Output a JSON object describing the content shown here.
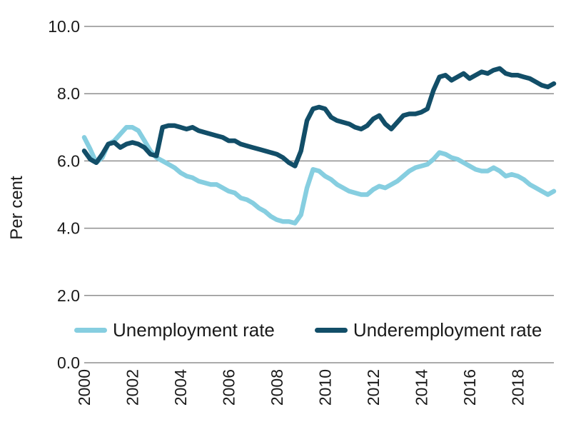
{
  "figure": {
    "background": "#FFFFFF",
    "text_color": "#1A1A1A",
    "grid_color": "#8F8F8F"
  },
  "chart_data": {
    "type": "line",
    "title": "",
    "xlabel": "",
    "ylabel": "Per cent",
    "ylim": [
      0,
      10
    ],
    "xlim": [
      2000,
      2019.5
    ],
    "grid": "horizontal-only",
    "legend_position": "bottom-inside",
    "yticks": {
      "values": [
        0,
        2,
        4,
        6,
        8,
        10
      ],
      "labels": [
        "0.0",
        "2.0",
        "4.0",
        "6.0",
        "8.0",
        "10.0"
      ]
    },
    "xticks": {
      "values": [
        2000,
        2002,
        2004,
        2006,
        2008,
        2010,
        2012,
        2014,
        2016,
        2018
      ],
      "labels": [
        "2000",
        "2002",
        "2004",
        "2006",
        "2008",
        "2010",
        "2012",
        "2014",
        "2016",
        "2018"
      ]
    },
    "x": [
      2000.0,
      2000.25,
      2000.5,
      2000.75,
      2001.0,
      2001.25,
      2001.5,
      2001.75,
      2002.0,
      2002.25,
      2002.5,
      2002.75,
      2003.0,
      2003.25,
      2003.5,
      2003.75,
      2004.0,
      2004.25,
      2004.5,
      2004.75,
      2005.0,
      2005.25,
      2005.5,
      2005.75,
      2006.0,
      2006.25,
      2006.5,
      2006.75,
      2007.0,
      2007.25,
      2007.5,
      2007.75,
      2008.0,
      2008.25,
      2008.5,
      2008.75,
      2009.0,
      2009.25,
      2009.5,
      2009.75,
      2010.0,
      2010.25,
      2010.5,
      2010.75,
      2011.0,
      2011.25,
      2011.5,
      2011.75,
      2012.0,
      2012.25,
      2012.5,
      2012.75,
      2013.0,
      2013.25,
      2013.5,
      2013.75,
      2014.0,
      2014.25,
      2014.5,
      2014.75,
      2015.0,
      2015.25,
      2015.5,
      2015.75,
      2016.0,
      2016.25,
      2016.5,
      2016.75,
      2017.0,
      2017.25,
      2017.5,
      2017.75,
      2018.0,
      2018.25,
      2018.5,
      2018.75,
      2019.0,
      2019.25,
      2019.5
    ],
    "series": [
      {
        "name": "Unemployment rate",
        "color": "#86CEE0",
        "values": [
          6.7,
          6.35,
          5.95,
          6.1,
          6.5,
          6.6,
          6.8,
          7.0,
          7.0,
          6.9,
          6.6,
          6.3,
          6.1,
          6.0,
          5.9,
          5.8,
          5.65,
          5.55,
          5.5,
          5.4,
          5.35,
          5.3,
          5.3,
          5.2,
          5.1,
          5.05,
          4.9,
          4.85,
          4.75,
          4.6,
          4.5,
          4.35,
          4.25,
          4.2,
          4.2,
          4.15,
          4.4,
          5.2,
          5.75,
          5.7,
          5.55,
          5.45,
          5.3,
          5.2,
          5.1,
          5.05,
          5.0,
          5.0,
          5.15,
          5.25,
          5.2,
          5.3,
          5.4,
          5.55,
          5.7,
          5.8,
          5.85,
          5.9,
          6.05,
          6.25,
          6.2,
          6.1,
          6.05,
          5.95,
          5.85,
          5.75,
          5.7,
          5.7,
          5.8,
          5.7,
          5.55,
          5.6,
          5.55,
          5.45,
          5.3,
          5.2,
          5.1,
          5.0,
          5.1
        ]
      },
      {
        "name": "Underemployment rate",
        "color": "#124E68",
        "values": [
          6.3,
          6.05,
          5.95,
          6.2,
          6.5,
          6.55,
          6.4,
          6.5,
          6.55,
          6.5,
          6.4,
          6.2,
          6.15,
          7.0,
          7.05,
          7.05,
          7.0,
          6.95,
          7.0,
          6.9,
          6.85,
          6.8,
          6.75,
          6.7,
          6.6,
          6.6,
          6.5,
          6.45,
          6.4,
          6.35,
          6.3,
          6.25,
          6.2,
          6.1,
          5.95,
          5.85,
          6.3,
          7.2,
          7.55,
          7.6,
          7.55,
          7.3,
          7.2,
          7.15,
          7.1,
          7.0,
          6.95,
          7.05,
          7.25,
          7.35,
          7.1,
          6.95,
          7.15,
          7.35,
          7.4,
          7.4,
          7.45,
          7.55,
          8.1,
          8.5,
          8.55,
          8.4,
          8.5,
          8.6,
          8.45,
          8.55,
          8.65,
          8.6,
          8.7,
          8.75,
          8.6,
          8.55,
          8.55,
          8.5,
          8.45,
          8.35,
          8.25,
          8.2,
          8.3
        ]
      }
    ]
  }
}
